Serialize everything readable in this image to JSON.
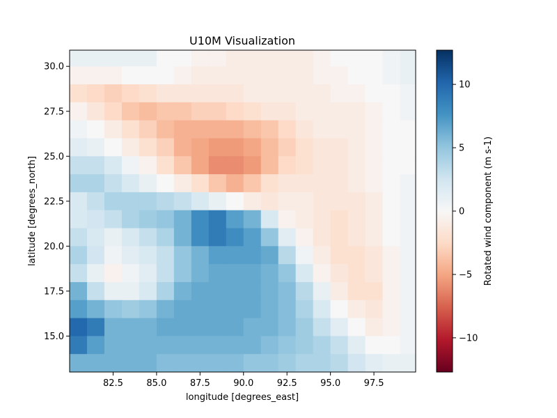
{
  "chart_data": {
    "type": "heatmap",
    "title": "U10M Visualization",
    "xlabel": "longitude [degrees_east]",
    "ylabel": "latitude [degrees_north]",
    "colorbar_label": "Rotated wind component (m s-1)",
    "colormap": "RdBu",
    "xlim": [
      80.0,
      99.9
    ],
    "ylim": [
      13.0,
      30.9
    ],
    "vlim": [
      -12.7,
      12.7
    ],
    "x_ticks": [
      82.5,
      85.0,
      87.5,
      90.0,
      92.5,
      95.0,
      97.5
    ],
    "x_tick_labels": [
      "82.5",
      "85.0",
      "87.5",
      "90.0",
      "92.5",
      "95.0",
      "97.5"
    ],
    "y_ticks": [
      15.0,
      17.5,
      20.0,
      22.5,
      25.0,
      27.5,
      30.0
    ],
    "y_tick_labels": [
      "15.0",
      "17.5",
      "20.0",
      "22.5",
      "25.0",
      "27.5",
      "30.0"
    ],
    "colorbar_ticks": [
      -10,
      -5,
      0,
      5,
      10
    ],
    "colorbar_tick_labels": [
      "−10",
      "−5",
      "0",
      "5",
      "10"
    ],
    "grid": false,
    "grid_lon_step": 1.0,
    "grid_lat_step": 1.0,
    "grid_lon": [
      80.5,
      81.5,
      82.5,
      83.5,
      84.5,
      85.5,
      86.5,
      87.5,
      88.5,
      89.5,
      90.5,
      91.5,
      92.5,
      93.5,
      94.5,
      95.5,
      96.5,
      97.5,
      98.5,
      99.5
    ],
    "grid_lat": [
      30.5,
      29.5,
      28.5,
      27.5,
      26.5,
      25.5,
      24.5,
      23.5,
      22.5,
      21.5,
      20.5,
      19.5,
      18.5,
      17.5,
      16.5,
      15.5,
      14.5,
      13.5
    ],
    "values": [
      [
        1,
        1,
        1,
        1,
        1,
        0,
        0,
        -0.5,
        -0.5,
        -1,
        -1,
        -1,
        -1,
        -1,
        -0.5,
        0,
        0,
        0,
        0.5,
        1
      ],
      [
        -0.5,
        -0.5,
        -0.5,
        0,
        0,
        0,
        -0.5,
        -1,
        -1,
        -1,
        -1,
        -1,
        -1,
        -1,
        -0.5,
        -0.5,
        0,
        0,
        0.5,
        1
      ],
      [
        -2,
        -2.5,
        -3,
        -2.5,
        -2,
        -1.5,
        -1.5,
        -1.5,
        -1.5,
        -1.5,
        -1,
        -1,
        -1,
        -1,
        -1,
        -0.5,
        -0.5,
        0,
        0,
        0.5
      ],
      [
        -0.5,
        -1.5,
        -2.5,
        -3.5,
        -4,
        -3.5,
        -3.5,
        -3,
        -3,
        -2.5,
        -2,
        -1.5,
        -1.5,
        -1,
        -1,
        -1,
        -1,
        -0.5,
        0,
        0.5
      ],
      [
        0.5,
        0,
        -1,
        -2,
        -3,
        -4,
        -4.5,
        -4.5,
        -4.5,
        -4.5,
        -4,
        -3.5,
        -2.5,
        -1.5,
        -1,
        -1,
        -1,
        -0.5,
        0,
        0
      ],
      [
        1.5,
        1,
        0,
        -1,
        -2,
        -3,
        -4.5,
        -5,
        -5.5,
        -5.5,
        -5,
        -4,
        -3,
        -2,
        -1.5,
        -1.5,
        -1,
        -0.5,
        0,
        0
      ],
      [
        3,
        3,
        2,
        0.5,
        -0.5,
        -2,
        -3.5,
        -5,
        -6,
        -6,
        -5.5,
        -4,
        -2.5,
        -2,
        -1.5,
        -1.5,
        -1,
        -0.5,
        0,
        0
      ],
      [
        4,
        4,
        3,
        2,
        1,
        0,
        -1,
        -2,
        -3.5,
        -4.5,
        -3.5,
        -2,
        -1.5,
        -1.5,
        -1.5,
        -1.5,
        -1,
        -0.5,
        0,
        0.5
      ],
      [
        2,
        3,
        4,
        4,
        4,
        3.5,
        3,
        2,
        1,
        0,
        -1,
        -1.5,
        -1,
        -1,
        -1.5,
        -1.5,
        -1.5,
        -1,
        0,
        0.5
      ],
      [
        2,
        2.5,
        3,
        4,
        4.5,
        5,
        6,
        8,
        9,
        7,
        6,
        2,
        -0.5,
        -1,
        -1.5,
        -2,
        -1.5,
        -1,
        0,
        0.5
      ],
      [
        3,
        2,
        1,
        2,
        3,
        4,
        6,
        8,
        9,
        8,
        7,
        5,
        1.5,
        -0.5,
        -1.5,
        -2,
        -1.5,
        -1,
        0,
        0.5
      ],
      [
        4,
        2.5,
        0.5,
        1.5,
        2,
        3,
        5,
        6,
        7,
        7,
        7,
        6.5,
        3.5,
        0.5,
        -1,
        -2,
        -2,
        -1.5,
        -0.5,
        0.5
      ],
      [
        3,
        1,
        -0.5,
        0.5,
        1.5,
        3,
        5,
        6,
        6.5,
        6.5,
        6.5,
        6,
        5,
        2,
        -0.5,
        -1.5,
        -2,
        -1.5,
        -0.5,
        0.5
      ],
      [
        6,
        3,
        1,
        1,
        2,
        4,
        6,
        6.5,
        6.5,
        6.5,
        6.5,
        6,
        5.5,
        3.5,
        1,
        -1,
        -2,
        -2,
        -0.5,
        0.5
      ],
      [
        7,
        6,
        5,
        4.5,
        5,
        6,
        6.5,
        6.5,
        6.5,
        6.5,
        6.5,
        6,
        5.5,
        4,
        2,
        0,
        -1,
        -1.5,
        -0.5,
        0.5
      ],
      [
        10,
        9,
        6,
        6,
        6,
        6.5,
        6.5,
        6.5,
        6.5,
        6.5,
        6,
        6,
        5.5,
        4.5,
        3,
        1.5,
        0,
        -1,
        -0.5,
        0.5
      ],
      [
        9,
        7,
        6,
        6,
        6,
        6,
        6,
        6,
        6,
        6,
        6,
        5.5,
        5,
        4.5,
        4,
        3,
        1.5,
        0,
        0,
        0.5
      ],
      [
        6,
        6,
        6,
        6,
        6,
        5.5,
        5.5,
        5.5,
        5.5,
        5.5,
        5,
        5,
        4.5,
        4,
        4,
        3.5,
        2.5,
        1.5,
        1,
        1
      ]
    ]
  }
}
